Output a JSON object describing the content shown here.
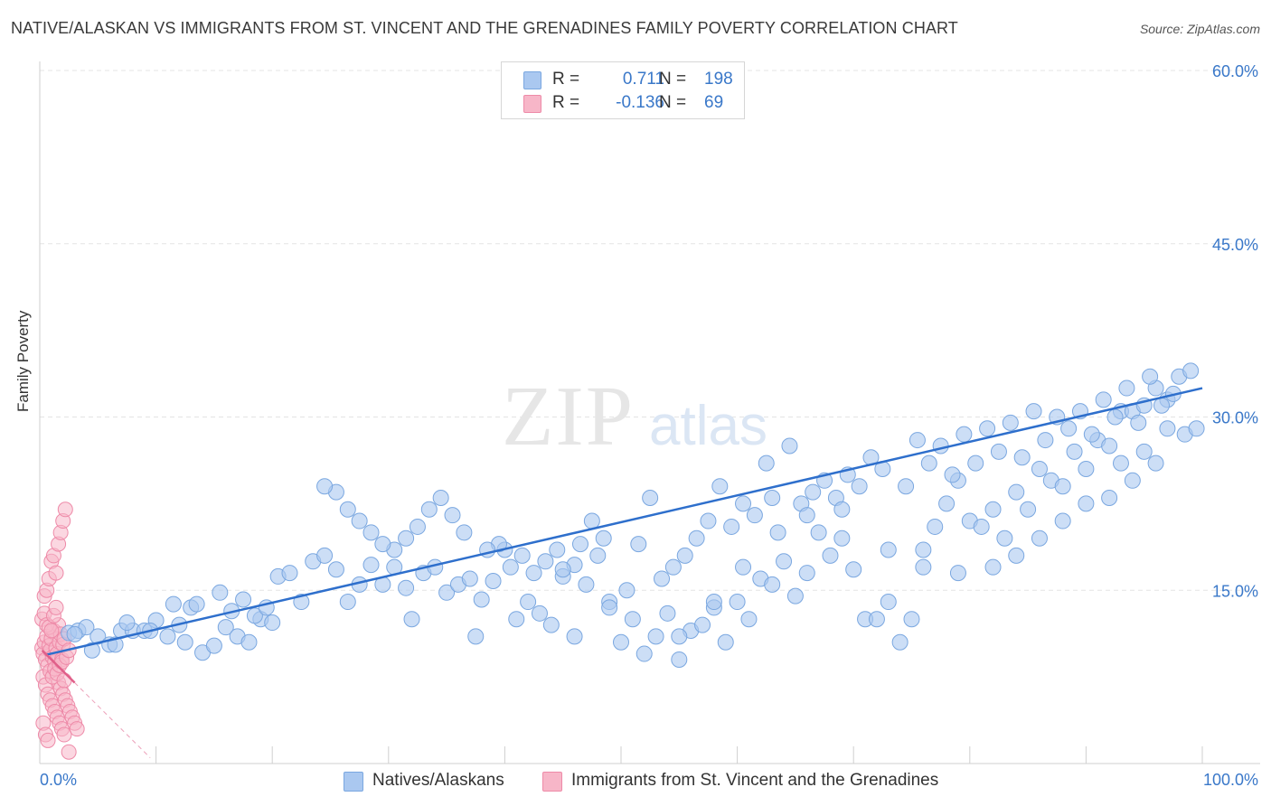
{
  "header": {
    "title": "NATIVE/ALASKAN VS IMMIGRANTS FROM ST. VINCENT AND THE GRENADINES FAMILY POVERTY CORRELATION CHART",
    "source": "Source: ZipAtlas.com"
  },
  "legend": {
    "rows": [
      {
        "r_label": "R =",
        "r_value": "0.711",
        "n_label": "N =",
        "n_value": "198"
      },
      {
        "r_label": "R =",
        "r_value": "-0.136",
        "n_label": "N =",
        "n_value": "69"
      }
    ]
  },
  "bottom_legend": {
    "items": [
      "Natives/Alaskans",
      "Immigrants from St. Vincent and the Grenadines"
    ]
  },
  "colors": {
    "blue_fill": "#aac8f0",
    "blue_stroke": "#7aa7e0",
    "blue_line": "#2e6fcc",
    "pink_fill": "#f7b6c8",
    "pink_stroke": "#ee8aa8",
    "pink_line": "#e0608a",
    "tick_text": "#3a78c9",
    "grid": "#e4e4e4"
  },
  "chart_data": {
    "type": "scatter",
    "title": "NATIVE/ALASKAN VS IMMIGRANTS FROM ST. VINCENT AND THE GRENADINES FAMILY POVERTY CORRELATION CHART",
    "xlabel": "",
    "ylabel": "Family Poverty",
    "xlim": [
      0,
      100
    ],
    "ylim": [
      0,
      60
    ],
    "x_ticks": [
      "0.0%",
      "100.0%"
    ],
    "y_ticks": [
      {
        "value": 15,
        "label": "15.0%"
      },
      {
        "value": 30,
        "label": "30.0%"
      },
      {
        "value": 45,
        "label": "45.0%"
      },
      {
        "value": 60,
        "label": "60.0%"
      }
    ],
    "grid": true,
    "legend_placement": "top-center",
    "watermark": "ZIPatlas",
    "series": [
      {
        "name": "Natives/Alaskans",
        "color": "#aac8f0",
        "trend": [
          [
            0.5,
            9.4
          ],
          [
            100,
            32.5
          ]
        ],
        "points": [
          [
            2.5,
            11.3
          ],
          [
            3.3,
            11.5
          ],
          [
            4.0,
            11.8
          ],
          [
            5.0,
            11.0
          ],
          [
            6.0,
            10.3
          ],
          [
            7.0,
            11.5
          ],
          [
            8.0,
            11.5
          ],
          [
            9.0,
            11.5
          ],
          [
            10.0,
            12.4
          ],
          [
            11.0,
            11.0
          ],
          [
            12.0,
            12.0
          ],
          [
            12.5,
            10.5
          ],
          [
            14.0,
            9.6
          ],
          [
            15.0,
            10.2
          ],
          [
            16.0,
            11.8
          ],
          [
            17.0,
            11.0
          ],
          [
            18.0,
            10.5
          ],
          [
            19.0,
            12.5
          ],
          [
            20.0,
            12.2
          ],
          [
            3.0,
            11.2
          ],
          [
            4.5,
            9.8
          ],
          [
            6.5,
            10.3
          ],
          [
            7.5,
            12.2
          ],
          [
            9.5,
            11.5
          ],
          [
            11.5,
            13.8
          ],
          [
            13.0,
            13.5
          ],
          [
            13.5,
            13.8
          ],
          [
            15.5,
            14.8
          ],
          [
            16.5,
            13.2
          ],
          [
            17.5,
            14.2
          ],
          [
            18.5,
            12.8
          ],
          [
            19.5,
            13.5
          ],
          [
            20.5,
            16.2
          ],
          [
            21.5,
            16.5
          ],
          [
            22.5,
            14.0
          ],
          [
            23.5,
            17.5
          ],
          [
            24.5,
            18.0
          ],
          [
            25.5,
            16.8
          ],
          [
            26.5,
            14.0
          ],
          [
            27.5,
            15.5
          ],
          [
            28.5,
            17.2
          ],
          [
            29.5,
            15.5
          ],
          [
            30.5,
            17.0
          ],
          [
            31.5,
            15.2
          ],
          [
            32.0,
            12.5
          ],
          [
            33.0,
            16.5
          ],
          [
            34.0,
            17.0
          ],
          [
            35.0,
            14.8
          ],
          [
            36.0,
            15.5
          ],
          [
            37.0,
            16.0
          ],
          [
            38.0,
            14.2
          ],
          [
            39.0,
            15.8
          ],
          [
            40.0,
            18.5
          ],
          [
            41.0,
            12.5
          ],
          [
            42.0,
            14.0
          ],
          [
            43.0,
            13.0
          ],
          [
            44.0,
            12.0
          ],
          [
            45.0,
            16.2
          ],
          [
            46.0,
            17.2
          ],
          [
            47.0,
            15.5
          ],
          [
            48.0,
            18.0
          ],
          [
            49.0,
            14.0
          ],
          [
            50.0,
            10.5
          ],
          [
            51.0,
            12.5
          ],
          [
            52.0,
            9.5
          ],
          [
            53.0,
            11.0
          ],
          [
            54.0,
            13.0
          ],
          [
            55.0,
            9.0
          ],
          [
            56.0,
            11.5
          ],
          [
            57.0,
            12.0
          ],
          [
            58.0,
            13.5
          ],
          [
            59.0,
            10.5
          ],
          [
            60.0,
            14.0
          ],
          [
            61.0,
            12.5
          ],
          [
            62.0,
            16.0
          ],
          [
            63.0,
            15.5
          ],
          [
            64.0,
            17.5
          ],
          [
            65.0,
            14.5
          ],
          [
            66.0,
            16.5
          ],
          [
            67.0,
            20.0
          ],
          [
            68.0,
            18.0
          ],
          [
            69.0,
            19.5
          ],
          [
            70.0,
            16.8
          ],
          [
            71.0,
            12.5
          ],
          [
            72.0,
            12.5
          ],
          [
            73.0,
            14.0
          ],
          [
            74.0,
            10.5
          ],
          [
            75.0,
            12.5
          ],
          [
            76.0,
            18.5
          ],
          [
            77.0,
            20.5
          ],
          [
            78.0,
            22.5
          ],
          [
            79.0,
            24.5
          ],
          [
            80.0,
            21.0
          ],
          [
            81.0,
            20.5
          ],
          [
            82.0,
            22.0
          ],
          [
            83.0,
            19.5
          ],
          [
            84.0,
            23.5
          ],
          [
            85.0,
            22.0
          ],
          [
            86.0,
            25.5
          ],
          [
            87.0,
            24.5
          ],
          [
            88.0,
            24.0
          ],
          [
            89.0,
            27.0
          ],
          [
            90.0,
            25.5
          ],
          [
            91.0,
            28.0
          ],
          [
            92.0,
            27.5
          ],
          [
            93.0,
            30.5
          ],
          [
            94.0,
            30.5
          ],
          [
            95.0,
            31.0
          ],
          [
            96.0,
            32.5
          ],
          [
            97.0,
            31.5
          ],
          [
            45.0,
            16.8
          ],
          [
            48.5,
            19.5
          ],
          [
            50.5,
            15.0
          ],
          [
            52.5,
            23.0
          ],
          [
            55.5,
            18.0
          ],
          [
            57.5,
            21.0
          ],
          [
            59.5,
            20.5
          ],
          [
            61.5,
            21.5
          ],
          [
            63.5,
            20.0
          ],
          [
            65.5,
            22.5
          ],
          [
            66.5,
            23.5
          ],
          [
            68.5,
            23.0
          ],
          [
            70.5,
            24.0
          ],
          [
            72.5,
            25.5
          ],
          [
            74.5,
            24.0
          ],
          [
            76.5,
            26.0
          ],
          [
            78.5,
            25.0
          ],
          [
            80.5,
            26.0
          ],
          [
            82.5,
            27.0
          ],
          [
            84.5,
            26.5
          ],
          [
            86.5,
            28.0
          ],
          [
            88.5,
            29.0
          ],
          [
            90.5,
            28.5
          ],
          [
            92.5,
            30.0
          ],
          [
            94.5,
            29.5
          ],
          [
            96.5,
            31.0
          ],
          [
            98.0,
            33.5
          ],
          [
            99.0,
            34.0
          ],
          [
            97.5,
            32.0
          ],
          [
            95.5,
            33.5
          ],
          [
            93.5,
            32.5
          ],
          [
            91.5,
            31.5
          ],
          [
            89.5,
            30.5
          ],
          [
            87.5,
            30.0
          ],
          [
            85.5,
            30.5
          ],
          [
            83.5,
            29.5
          ],
          [
            81.5,
            29.0
          ],
          [
            79.5,
            28.5
          ],
          [
            77.5,
            27.5
          ],
          [
            75.5,
            28.0
          ],
          [
            71.5,
            26.5
          ],
          [
            69.5,
            25.0
          ],
          [
            67.5,
            24.5
          ],
          [
            64.5,
            27.5
          ],
          [
            62.5,
            26.0
          ],
          [
            60.5,
            22.5
          ],
          [
            58.5,
            24.0
          ],
          [
            56.5,
            19.5
          ],
          [
            54.5,
            17.0
          ],
          [
            53.5,
            16.0
          ],
          [
            47.5,
            21.0
          ],
          [
            46.5,
            19.0
          ],
          [
            44.5,
            18.5
          ],
          [
            43.5,
            17.5
          ],
          [
            42.5,
            16.5
          ],
          [
            41.5,
            18.0
          ],
          [
            40.5,
            17.0
          ],
          [
            39.5,
            19.0
          ],
          [
            38.5,
            18.5
          ],
          [
            36.5,
            20.0
          ],
          [
            35.5,
            21.5
          ],
          [
            34.5,
            23.0
          ],
          [
            33.5,
            22.0
          ],
          [
            32.5,
            20.5
          ],
          [
            31.5,
            19.5
          ],
          [
            30.5,
            18.5
          ],
          [
            29.5,
            19.0
          ],
          [
            28.5,
            20.0
          ],
          [
            27.5,
            21.0
          ],
          [
            26.5,
            22.0
          ],
          [
            25.5,
            23.5
          ],
          [
            24.5,
            24.0
          ],
          [
            37.5,
            11.0
          ],
          [
            46.0,
            11.0
          ],
          [
            49.0,
            13.5
          ],
          [
            51.5,
            19.0
          ],
          [
            55.0,
            11.0
          ],
          [
            58.0,
            14.0
          ],
          [
            60.5,
            17.0
          ],
          [
            63.0,
            23.0
          ],
          [
            66.0,
            21.5
          ],
          [
            69.0,
            22.0
          ],
          [
            73.0,
            18.5
          ],
          [
            76.0,
            17.0
          ],
          [
            79.0,
            16.5
          ],
          [
            82.0,
            17.0
          ],
          [
            84.0,
            18.0
          ],
          [
            86.0,
            19.5
          ],
          [
            88.0,
            21.0
          ],
          [
            90.0,
            22.5
          ],
          [
            92.0,
            23.0
          ],
          [
            94.0,
            24.5
          ],
          [
            96.0,
            26.0
          ],
          [
            98.5,
            28.5
          ],
          [
            99.5,
            29.0
          ],
          [
            97.0,
            29.0
          ],
          [
            95.0,
            27.0
          ],
          [
            93.0,
            26.0
          ]
        ]
      },
      {
        "name": "Immigrants from St. Vincent and the Grenadines",
        "color": "#f7b6c8",
        "trend": [
          [
            0.2,
            9.8
          ],
          [
            3.0,
            7.0
          ]
        ],
        "trend_dashed_to": [
          9.5,
          0.5
        ],
        "points": [
          [
            0.2,
            10.0
          ],
          [
            0.3,
            9.5
          ],
          [
            0.4,
            10.5
          ],
          [
            0.5,
            9.0
          ],
          [
            0.6,
            11.0
          ],
          [
            0.7,
            8.5
          ],
          [
            0.8,
            10.2
          ],
          [
            0.9,
            9.8
          ],
          [
            1.0,
            10.8
          ],
          [
            1.1,
            9.2
          ],
          [
            1.2,
            11.5
          ],
          [
            1.3,
            8.8
          ],
          [
            1.4,
            10.0
          ],
          [
            1.5,
            9.5
          ],
          [
            1.6,
            12.0
          ],
          [
            1.7,
            10.5
          ],
          [
            1.8,
            11.2
          ],
          [
            1.9,
            9.0
          ],
          [
            2.0,
            10.3
          ],
          [
            2.1,
            10.8
          ],
          [
            0.3,
            7.5
          ],
          [
            0.5,
            6.8
          ],
          [
            0.7,
            6.0
          ],
          [
            0.9,
            5.5
          ],
          [
            1.1,
            5.0
          ],
          [
            1.3,
            4.5
          ],
          [
            1.5,
            4.0
          ],
          [
            1.7,
            3.5
          ],
          [
            1.9,
            3.0
          ],
          [
            2.1,
            2.5
          ],
          [
            0.4,
            14.5
          ],
          [
            0.6,
            15.0
          ],
          [
            0.8,
            16.0
          ],
          [
            1.0,
            17.5
          ],
          [
            1.2,
            18.0
          ],
          [
            1.4,
            16.5
          ],
          [
            1.6,
            19.0
          ],
          [
            1.8,
            20.0
          ],
          [
            2.0,
            21.0
          ],
          [
            2.2,
            22.0
          ],
          [
            0.2,
            12.5
          ],
          [
            0.4,
            13.0
          ],
          [
            0.6,
            12.0
          ],
          [
            0.8,
            11.8
          ],
          [
            1.0,
            11.5
          ],
          [
            1.2,
            12.8
          ],
          [
            1.4,
            13.5
          ],
          [
            1.6,
            7.0
          ],
          [
            1.8,
            6.5
          ],
          [
            2.0,
            6.0
          ],
          [
            2.2,
            5.5
          ],
          [
            2.4,
            5.0
          ],
          [
            2.6,
            4.5
          ],
          [
            2.8,
            4.0
          ],
          [
            3.0,
            3.5
          ],
          [
            3.2,
            3.0
          ],
          [
            0.3,
            3.5
          ],
          [
            0.5,
            2.5
          ],
          [
            0.7,
            2.0
          ],
          [
            2.5,
            1.0
          ],
          [
            0.9,
            8.0
          ],
          [
            1.1,
            7.5
          ],
          [
            1.3,
            8.2
          ],
          [
            1.5,
            7.8
          ],
          [
            1.7,
            8.5
          ],
          [
            1.9,
            8.8
          ],
          [
            2.1,
            7.2
          ],
          [
            2.3,
            9.2
          ],
          [
            2.5,
            9.8
          ]
        ]
      }
    ]
  }
}
